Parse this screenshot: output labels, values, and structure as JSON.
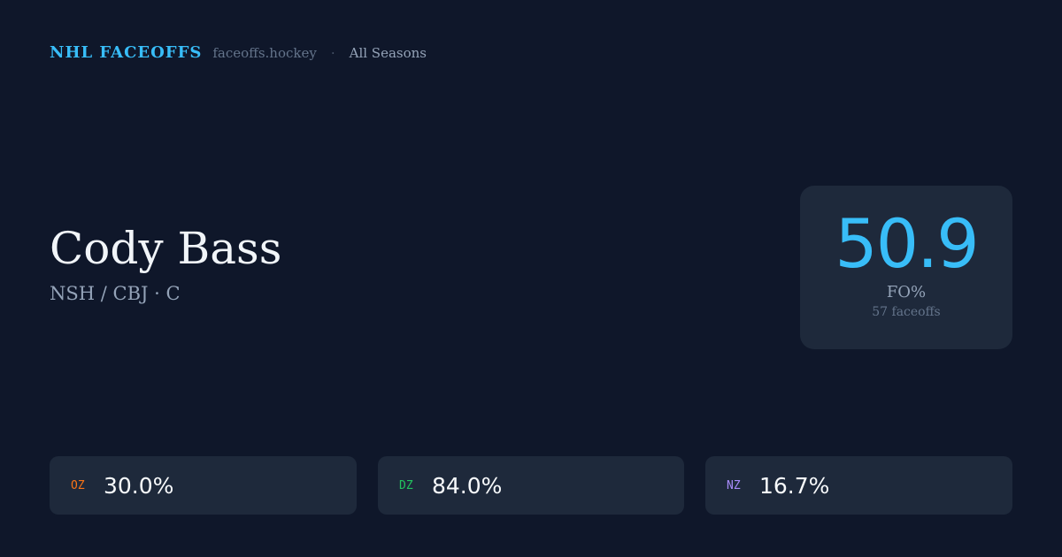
{
  "header": {
    "brand": "NHL FACEOFFS",
    "site": "faceoffs.hockey",
    "separator": "·",
    "season": "All Seasons"
  },
  "player": {
    "name": "Cody Bass",
    "teams": "NSH / CBJ · C"
  },
  "summary": {
    "fo_pct": "50.9",
    "label": "FO%",
    "count": "57 faceoffs"
  },
  "zones": [
    {
      "label": "OZ",
      "value": "30.0%",
      "color": "#f97316"
    },
    {
      "label": "DZ",
      "value": "84.0%",
      "color": "#22c55e"
    },
    {
      "label": "NZ",
      "value": "16.7%",
      "color": "#a78bfa"
    }
  ]
}
